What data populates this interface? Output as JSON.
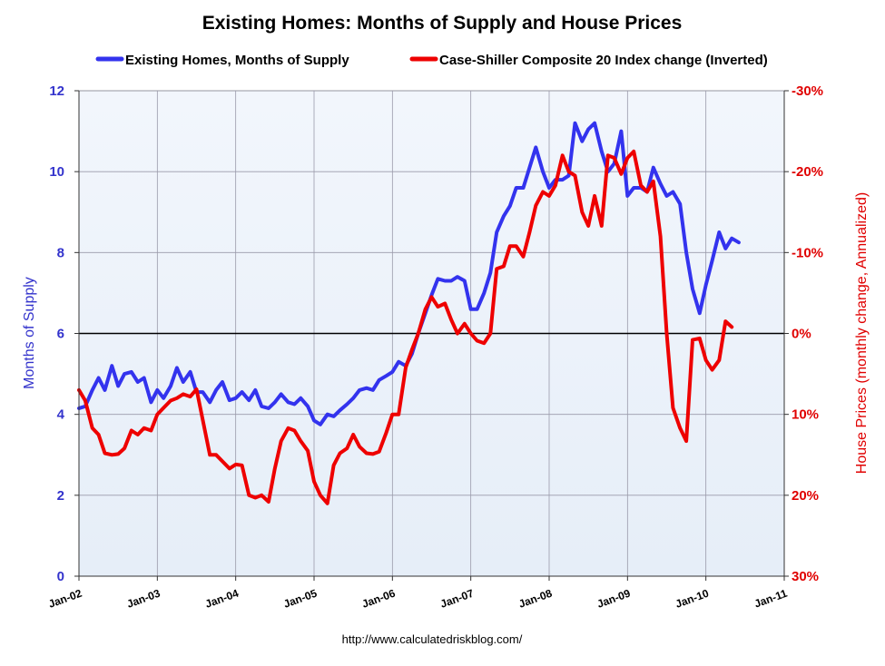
{
  "chart_data": {
    "type": "line",
    "title": "Existing Homes: Months of Supply and House Prices",
    "ylabel_left": "Months of Supply",
    "ylabel_right": "House Prices (monthly change, Annualized)",
    "xlabel": "",
    "source": "http://www.calculatedriskblog.com/",
    "x_ticks": [
      "Jan-02",
      "Jan-03",
      "Jan-04",
      "Jan-05",
      "Jan-06",
      "Jan-07",
      "Jan-08",
      "Jan-09",
      "Jan-10",
      "Jan-11"
    ],
    "x_range": [
      2002.0,
      2011.0
    ],
    "y_left": {
      "range": [
        0,
        12
      ],
      "ticks": [
        "0",
        "2",
        "4",
        "6",
        "8",
        "10",
        "12"
      ]
    },
    "y_right": {
      "range": [
        -30,
        30
      ],
      "inverted": true,
      "ticks": [
        "-30%",
        "-20%",
        "-10%",
        "0%",
        "10%",
        "20%",
        "30%"
      ]
    },
    "reference_line": {
      "axis": "right",
      "value": 0
    },
    "grid": true,
    "legend_position": "top",
    "colors": {
      "supply": "#3333ee",
      "price": "#ee0000",
      "plot_bg": "#eef4fb",
      "grid": "#9a9aaa"
    },
    "series": [
      {
        "name": "Existing Homes, Months of Supply",
        "axis": "left",
        "color": "#3333ee",
        "points": [
          [
            2002.0,
            4.15
          ],
          [
            2002.08,
            4.2
          ],
          [
            2002.17,
            4.6
          ],
          [
            2002.25,
            4.9
          ],
          [
            2002.33,
            4.6
          ],
          [
            2002.42,
            5.2
          ],
          [
            2002.5,
            4.7
          ],
          [
            2002.58,
            5.0
          ],
          [
            2002.67,
            5.05
          ],
          [
            2002.75,
            4.8
          ],
          [
            2002.83,
            4.9
          ],
          [
            2002.92,
            4.3
          ],
          [
            2003.0,
            4.6
          ],
          [
            2003.08,
            4.4
          ],
          [
            2003.17,
            4.7
          ],
          [
            2003.25,
            5.15
          ],
          [
            2003.33,
            4.8
          ],
          [
            2003.42,
            5.05
          ],
          [
            2003.5,
            4.55
          ],
          [
            2003.58,
            4.55
          ],
          [
            2003.67,
            4.3
          ],
          [
            2003.75,
            4.6
          ],
          [
            2003.83,
            4.8
          ],
          [
            2003.92,
            4.35
          ],
          [
            2004.0,
            4.4
          ],
          [
            2004.08,
            4.55
          ],
          [
            2004.17,
            4.35
          ],
          [
            2004.25,
            4.6
          ],
          [
            2004.33,
            4.2
          ],
          [
            2004.42,
            4.15
          ],
          [
            2004.5,
            4.3
          ],
          [
            2004.58,
            4.5
          ],
          [
            2004.67,
            4.3
          ],
          [
            2004.75,
            4.25
          ],
          [
            2004.83,
            4.4
          ],
          [
            2004.92,
            4.2
          ],
          [
            2005.0,
            3.85
          ],
          [
            2005.08,
            3.75
          ],
          [
            2005.17,
            4.0
          ],
          [
            2005.25,
            3.95
          ],
          [
            2005.33,
            4.1
          ],
          [
            2005.42,
            4.25
          ],
          [
            2005.5,
            4.4
          ],
          [
            2005.58,
            4.6
          ],
          [
            2005.67,
            4.65
          ],
          [
            2005.75,
            4.6
          ],
          [
            2005.83,
            4.85
          ],
          [
            2005.92,
            4.95
          ],
          [
            2006.0,
            5.05
          ],
          [
            2006.08,
            5.3
          ],
          [
            2006.17,
            5.2
          ],
          [
            2006.25,
            5.5
          ],
          [
            2006.33,
            6.0
          ],
          [
            2006.42,
            6.5
          ],
          [
            2006.5,
            6.95
          ],
          [
            2006.58,
            7.35
          ],
          [
            2006.67,
            7.3
          ],
          [
            2006.75,
            7.3
          ],
          [
            2006.83,
            7.4
          ],
          [
            2006.92,
            7.3
          ],
          [
            2007.0,
            6.6
          ],
          [
            2007.08,
            6.6
          ],
          [
            2007.17,
            7.0
          ],
          [
            2007.25,
            7.5
          ],
          [
            2007.33,
            8.5
          ],
          [
            2007.42,
            8.9
          ],
          [
            2007.5,
            9.15
          ],
          [
            2007.58,
            9.6
          ],
          [
            2007.67,
            9.6
          ],
          [
            2007.75,
            10.1
          ],
          [
            2007.83,
            10.6
          ],
          [
            2007.92,
            10.0
          ],
          [
            2008.0,
            9.6
          ],
          [
            2008.08,
            9.8
          ],
          [
            2008.17,
            9.8
          ],
          [
            2008.25,
            9.9
          ],
          [
            2008.33,
            11.2
          ],
          [
            2008.42,
            10.75
          ],
          [
            2008.5,
            11.05
          ],
          [
            2008.58,
            11.2
          ],
          [
            2008.67,
            10.5
          ],
          [
            2008.75,
            10.0
          ],
          [
            2008.83,
            10.2
          ],
          [
            2008.92,
            11.0
          ],
          [
            2009.0,
            9.4
          ],
          [
            2009.08,
            9.6
          ],
          [
            2009.17,
            9.6
          ],
          [
            2009.25,
            9.5
          ],
          [
            2009.33,
            10.1
          ],
          [
            2009.42,
            9.7
          ],
          [
            2009.5,
            9.4
          ],
          [
            2009.58,
            9.5
          ],
          [
            2009.67,
            9.2
          ],
          [
            2009.75,
            8.0
          ],
          [
            2009.83,
            7.1
          ],
          [
            2009.92,
            6.5
          ],
          [
            2010.0,
            7.2
          ],
          [
            2010.08,
            7.8
          ],
          [
            2010.17,
            8.5
          ],
          [
            2010.25,
            8.1
          ],
          [
            2010.33,
            8.35
          ],
          [
            2010.42,
            8.25
          ]
        ]
      },
      {
        "name": "Case-Shiller Composite 20 Index change (Inverted)",
        "axis": "right",
        "color": "#ee0000",
        "points": [
          [
            2002.0,
            7.0
          ],
          [
            2002.08,
            8.3
          ],
          [
            2002.17,
            11.7
          ],
          [
            2002.25,
            12.5
          ],
          [
            2002.33,
            14.8
          ],
          [
            2002.42,
            15.0
          ],
          [
            2002.5,
            14.9
          ],
          [
            2002.58,
            14.2
          ],
          [
            2002.67,
            12.0
          ],
          [
            2002.75,
            12.5
          ],
          [
            2002.83,
            11.7
          ],
          [
            2002.92,
            12.0
          ],
          [
            2003.0,
            10.0
          ],
          [
            2003.08,
            9.2
          ],
          [
            2003.17,
            8.3
          ],
          [
            2003.25,
            8.0
          ],
          [
            2003.33,
            7.5
          ],
          [
            2003.42,
            7.8
          ],
          [
            2003.5,
            6.9
          ],
          [
            2003.58,
            10.7
          ],
          [
            2003.67,
            15.0
          ],
          [
            2003.75,
            15.0
          ],
          [
            2003.83,
            15.8
          ],
          [
            2003.92,
            16.7
          ],
          [
            2004.0,
            16.2
          ],
          [
            2004.08,
            16.3
          ],
          [
            2004.17,
            20.0
          ],
          [
            2004.25,
            20.3
          ],
          [
            2004.33,
            20.0
          ],
          [
            2004.42,
            20.8
          ],
          [
            2004.5,
            16.7
          ],
          [
            2004.58,
            13.3
          ],
          [
            2004.67,
            11.7
          ],
          [
            2004.75,
            12.0
          ],
          [
            2004.83,
            13.3
          ],
          [
            2004.92,
            14.5
          ],
          [
            2005.0,
            18.3
          ],
          [
            2005.08,
            20.0
          ],
          [
            2005.17,
            21.0
          ],
          [
            2005.25,
            16.3
          ],
          [
            2005.33,
            14.8
          ],
          [
            2005.42,
            14.2
          ],
          [
            2005.5,
            12.5
          ],
          [
            2005.58,
            14.0
          ],
          [
            2005.67,
            14.8
          ],
          [
            2005.75,
            14.9
          ],
          [
            2005.83,
            14.6
          ],
          [
            2005.92,
            12.3
          ],
          [
            2006.0,
            10.0
          ],
          [
            2006.08,
            10.0
          ],
          [
            2006.17,
            4.2
          ],
          [
            2006.25,
            2.0
          ],
          [
            2006.33,
            0.0
          ],
          [
            2006.42,
            -3.0
          ],
          [
            2006.5,
            -4.5
          ],
          [
            2006.58,
            -3.3
          ],
          [
            2006.67,
            -3.7
          ],
          [
            2006.75,
            -1.7
          ],
          [
            2006.83,
            0.0
          ],
          [
            2006.92,
            -1.2
          ],
          [
            2007.0,
            0.0
          ],
          [
            2007.08,
            0.9
          ],
          [
            2007.17,
            1.2
          ],
          [
            2007.25,
            0.0
          ],
          [
            2007.33,
            -8.0
          ],
          [
            2007.42,
            -8.3
          ],
          [
            2007.5,
            -10.8
          ],
          [
            2007.58,
            -10.8
          ],
          [
            2007.67,
            -9.5
          ],
          [
            2007.75,
            -12.5
          ],
          [
            2007.83,
            -15.8
          ],
          [
            2007.92,
            -17.5
          ],
          [
            2008.0,
            -17.0
          ],
          [
            2008.08,
            -18.3
          ],
          [
            2008.17,
            -22.0
          ],
          [
            2008.25,
            -20.0
          ],
          [
            2008.33,
            -19.5
          ],
          [
            2008.42,
            -15.0
          ],
          [
            2008.5,
            -13.3
          ],
          [
            2008.58,
            -17.0
          ],
          [
            2008.67,
            -13.3
          ],
          [
            2008.75,
            -22.0
          ],
          [
            2008.83,
            -21.7
          ],
          [
            2008.92,
            -19.7
          ],
          [
            2009.0,
            -21.7
          ],
          [
            2009.08,
            -22.5
          ],
          [
            2009.17,
            -18.3
          ],
          [
            2009.25,
            -17.5
          ],
          [
            2009.33,
            -18.8
          ],
          [
            2009.42,
            -12.0
          ],
          [
            2009.5,
            0.0
          ],
          [
            2009.58,
            9.2
          ],
          [
            2009.67,
            11.7
          ],
          [
            2009.75,
            13.3
          ],
          [
            2009.83,
            0.8
          ],
          [
            2009.92,
            0.6
          ],
          [
            2010.0,
            3.3
          ],
          [
            2010.08,
            4.5
          ],
          [
            2010.17,
            3.3
          ],
          [
            2010.25,
            -1.5
          ],
          [
            2010.33,
            -0.8
          ]
        ]
      }
    ]
  }
}
